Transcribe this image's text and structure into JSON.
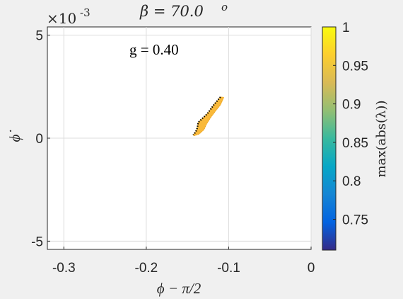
{
  "chart_data": {
    "type": "scatter",
    "title": "β = 70.0",
    "title_superscript": "o",
    "annotation": "g = 0.40",
    "xlabel": "ϕ − π/2",
    "ylabel": "ϕ̇",
    "y_exponent_label": "×10",
    "y_exponent_power": "-3",
    "xlim": [
      -0.32,
      0
    ],
    "ylim": [
      -5.4,
      5.4
    ],
    "xticks": [
      -0.3,
      -0.2,
      -0.1,
      0
    ],
    "xtick_labels": [
      "-0.3",
      "-0.2",
      "-0.1",
      "0"
    ],
    "yticks": [
      -5,
      0,
      5
    ],
    "ytick_labels": [
      "-5",
      "0",
      "5"
    ],
    "grid": true,
    "region": {
      "polygon": [
        [
          -0.142,
          0.12
        ],
        [
          -0.136,
          0.2
        ],
        [
          -0.13,
          0.42
        ],
        [
          -0.127,
          0.68
        ],
        [
          -0.122,
          1.0
        ],
        [
          -0.116,
          1.32
        ],
        [
          -0.11,
          1.62
        ],
        [
          -0.106,
          1.98
        ],
        [
          -0.11,
          2.0
        ],
        [
          -0.118,
          1.62
        ],
        [
          -0.126,
          1.18
        ],
        [
          -0.133,
          0.92
        ],
        [
          -0.137,
          0.76
        ],
        [
          -0.138,
          0.5
        ],
        [
          -0.14,
          0.3
        ],
        [
          -0.143,
          0.16
        ]
      ],
      "value": 0.96,
      "color": "#f9b93a",
      "edge_color": "#000000"
    },
    "colorbar": {
      "label": "max(abs(λ))",
      "min": 0.71,
      "max": 1.0,
      "ticks": [
        0.75,
        0.8,
        0.85,
        0.9,
        0.95,
        1
      ],
      "tick_labels": [
        "0.75",
        "0.8",
        "0.85",
        "0.9",
        "0.95",
        "1"
      ],
      "colormap": "parula",
      "colors": [
        "#352a87",
        "#0363e1",
        "#1485d4",
        "#06a7c6",
        "#38b99e",
        "#92bf73",
        "#d9ba56",
        "#fcce2e",
        "#f9fb0e"
      ]
    }
  }
}
